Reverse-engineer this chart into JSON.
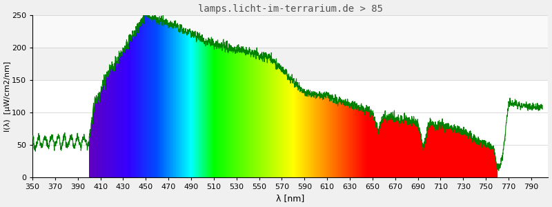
{
  "title": "lamps.licht-im-terrarium.de > 85",
  "xlabel": "λ [nm]",
  "ylabel": "I(λ)  [µW/cm2/nm]",
  "xlim": [
    350,
    805
  ],
  "ylim": [
    0,
    250
  ],
  "yticks": [
    0,
    50,
    100,
    150,
    200,
    250
  ],
  "xticks": [
    350,
    370,
    390,
    410,
    430,
    450,
    470,
    490,
    510,
    530,
    550,
    570,
    590,
    610,
    630,
    650,
    670,
    690,
    710,
    730,
    750,
    770,
    790
  ],
  "spectrum_start": 400,
  "spectrum_end": 760,
  "background_color": "#f0f0f0",
  "plot_bg_color": "#ffffff",
  "line_color": "#008000",
  "title_color": "#505050",
  "title_fontsize": 10
}
